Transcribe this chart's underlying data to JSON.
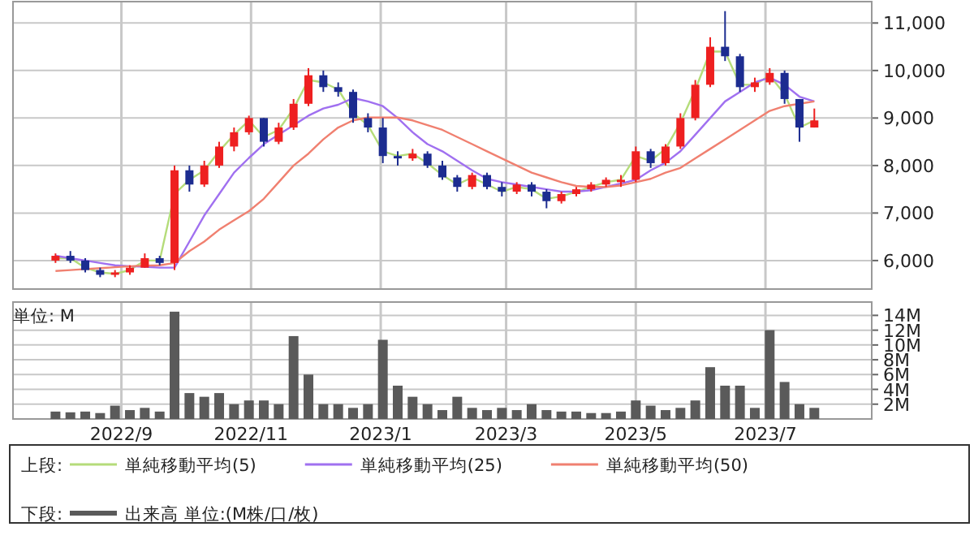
{
  "chart_data": [
    {
      "type": "candlestick",
      "legend_title": "上段:",
      "legend": "bottom",
      "grid": true,
      "tick_labels": "y",
      "marker": "none",
      "line_style": "solid",
      "xlim": [
        "2022-07-12",
        "2023-08-20"
      ],
      "xticks": [
        {
          "value": "2022-09-01",
          "label": null
        },
        {
          "value": "2022-11-01",
          "label": null
        },
        {
          "value": "2023-01-01",
          "label": null
        },
        {
          "value": "2023-03-01",
          "label": null
        },
        {
          "value": "2023-05-01",
          "label": null
        },
        {
          "value": "2023-07-01",
          "label": null
        }
      ],
      "ylim": [
        5400,
        11450
      ],
      "yticks": [
        {
          "value": 6000,
          "label": "6,000"
        },
        {
          "value": 7000,
          "label": "7,000"
        },
        {
          "value": 8000,
          "label": "8,000"
        },
        {
          "value": 9000,
          "label": "9,000"
        },
        {
          "value": 10000,
          "label": "10,000"
        },
        {
          "value": 11000,
          "label": "11,000"
        }
      ],
      "x": [
        "2022-08-01",
        "2022-08-08",
        "2022-08-15",
        "2022-08-22",
        "2022-08-29",
        "2022-09-05",
        "2022-09-12",
        "2022-09-19",
        "2022-09-26",
        "2022-10-03",
        "2022-10-10",
        "2022-10-17",
        "2022-10-24",
        "2022-10-31",
        "2022-11-07",
        "2022-11-14",
        "2022-11-21",
        "2022-11-28",
        "2022-12-05",
        "2022-12-12",
        "2022-12-19",
        "2022-12-26",
        "2023-01-02",
        "2023-01-09",
        "2023-01-16",
        "2023-01-23",
        "2023-01-30",
        "2023-02-06",
        "2023-02-13",
        "2023-02-20",
        "2023-02-27",
        "2023-03-06",
        "2023-03-13",
        "2023-03-20",
        "2023-03-27",
        "2023-04-03",
        "2023-04-10",
        "2023-04-17",
        "2023-04-24",
        "2023-05-01",
        "2023-05-08",
        "2023-05-15",
        "2023-05-22",
        "2023-05-29",
        "2023-06-05",
        "2023-06-12",
        "2023-06-19",
        "2023-06-26",
        "2023-07-03",
        "2023-07-10",
        "2023-07-17",
        "2023-07-24"
      ],
      "ohlc": [
        [
          6000,
          6150,
          5950,
          6100
        ],
        [
          6100,
          6200,
          5950,
          6000
        ],
        [
          6000,
          6050,
          5750,
          5800
        ],
        [
          5800,
          5850,
          5650,
          5700
        ],
        [
          5700,
          5800,
          5650,
          5750
        ],
        [
          5750,
          5900,
          5700,
          5850
        ],
        [
          5850,
          6150,
          5850,
          6050
        ],
        [
          6050,
          6100,
          5900,
          5950
        ],
        [
          5950,
          8000,
          5800,
          7900
        ],
        [
          7900,
          8000,
          7450,
          7600
        ],
        [
          7600,
          8100,
          7550,
          8000
        ],
        [
          8000,
          8500,
          7950,
          8400
        ],
        [
          8400,
          8800,
          8300,
          8700
        ],
        [
          8700,
          9050,
          8650,
          9000
        ],
        [
          9000,
          9000,
          8400,
          8500
        ],
        [
          8500,
          8900,
          8450,
          8800
        ],
        [
          8800,
          9400,
          8750,
          9300
        ],
        [
          9300,
          10050,
          9250,
          9900
        ],
        [
          9900,
          10000,
          9550,
          9650
        ],
        [
          9650,
          9750,
          9450,
          9550
        ],
        [
          9550,
          9600,
          8900,
          9000
        ],
        [
          9000,
          9100,
          8700,
          8800
        ],
        [
          8800,
          9000,
          8050,
          8200
        ],
        [
          8200,
          8300,
          8000,
          8150
        ],
        [
          8150,
          8350,
          8100,
          8250
        ],
        [
          8250,
          8300,
          7950,
          8000
        ],
        [
          8000,
          8100,
          7700,
          7750
        ],
        [
          7750,
          7800,
          7450,
          7550
        ],
        [
          7550,
          7850,
          7500,
          7800
        ],
        [
          7800,
          7850,
          7500,
          7550
        ],
        [
          7550,
          7650,
          7350,
          7450
        ],
        [
          7450,
          7650,
          7400,
          7600
        ],
        [
          7600,
          7650,
          7350,
          7450
        ],
        [
          7450,
          7500,
          7100,
          7250
        ],
        [
          7250,
          7450,
          7200,
          7400
        ],
        [
          7400,
          7550,
          7350,
          7500
        ],
        [
          7500,
          7650,
          7450,
          7600
        ],
        [
          7600,
          7750,
          7550,
          7700
        ],
        [
          7650,
          7800,
          7550,
          7700
        ],
        [
          7700,
          8400,
          7650,
          8300
        ],
        [
          8300,
          8350,
          7950,
          8050
        ],
        [
          8050,
          8450,
          8000,
          8400
        ],
        [
          8400,
          9100,
          8350,
          9000
        ],
        [
          9000,
          9800,
          8950,
          9700
        ],
        [
          9700,
          10700,
          9650,
          10500
        ],
        [
          10500,
          11250,
          10200,
          10300
        ],
        [
          10300,
          10350,
          9550,
          9650
        ],
        [
          9650,
          9850,
          9550,
          9750
        ],
        [
          9750,
          10050,
          9700,
          9950
        ],
        [
          9950,
          10000,
          9300,
          9400
        ],
        [
          9400,
          9400,
          8500,
          8800
        ],
        [
          8800,
          9200,
          8800,
          8950
        ]
      ],
      "series": [
        {
          "type": "line",
          "name": "単純移動平均(5)",
          "color": "#b5dc7a",
          "values": [
            6050,
            6050,
            5850,
            5750,
            5720,
            5800,
            6000,
            6000,
            7400,
            7700,
            7900,
            8300,
            8650,
            8950,
            8600,
            8750,
            9200,
            9800,
            9750,
            9600,
            9100,
            8850,
            8300,
            8200,
            8250,
            8050,
            7800,
            7600,
            7750,
            7600,
            7450,
            7550,
            7500,
            7300,
            7350,
            7450,
            7550,
            7650,
            7700,
            8200,
            8100,
            8350,
            8900,
            9600,
            10400,
            10400,
            9700,
            9700,
            9900,
            9500,
            8800,
            8950
          ]
        },
        {
          "type": "line",
          "name": "単純移動平均(25)",
          "color": "#a070f0",
          "values": [
            6100,
            6050,
            6000,
            5950,
            5900,
            5880,
            5870,
            5850,
            5850,
            6400,
            6950,
            7400,
            7850,
            8160,
            8450,
            8650,
            8850,
            9050,
            9200,
            9280,
            9420,
            9350,
            9250,
            9000,
            8700,
            8450,
            8300,
            8100,
            7900,
            7720,
            7650,
            7600,
            7550,
            7500,
            7450,
            7450,
            7480,
            7550,
            7620,
            7700,
            7900,
            8060,
            8300,
            8650,
            9000,
            9350,
            9550,
            9750,
            9850,
            9700,
            9450,
            9350
          ]
        },
        {
          "type": "line",
          "name": "単純移動平均(50)",
          "color": "#f08070",
          "values": [
            5780,
            5800,
            5820,
            5840,
            5860,
            5880,
            5890,
            5900,
            5950,
            6200,
            6400,
            6650,
            6850,
            7040,
            7300,
            7650,
            8000,
            8250,
            8550,
            8800,
            8950,
            9010,
            9010,
            9010,
            8950,
            8850,
            8750,
            8600,
            8450,
            8300,
            8150,
            8000,
            7850,
            7750,
            7650,
            7570,
            7550,
            7550,
            7580,
            7650,
            7720,
            7850,
            7950,
            8150,
            8350,
            8550,
            8750,
            8950,
            9150,
            9250,
            9300,
            9350
          ]
        }
      ]
    },
    {
      "type": "bar",
      "legend_title": "下段:",
      "legend": "bottom",
      "grid": true,
      "ylabel": "単位: M",
      "xlim": [
        "2022-07-12",
        "2023-08-20"
      ],
      "xticks": [
        {
          "value": "2022-09-01",
          "label": "2022/9"
        },
        {
          "value": "2022-11-01",
          "label": "2022/11"
        },
        {
          "value": "2023-01-01",
          "label": "2023/1"
        },
        {
          "value": "2023-03-01",
          "label": "2023/3"
        },
        {
          "value": "2023-05-01",
          "label": "2023/5"
        },
        {
          "value": "2023-07-01",
          "label": "2023/7"
        }
      ],
      "ylim": [
        0,
        15.8
      ],
      "yticks": [
        {
          "value": 2,
          "label": "2M"
        },
        {
          "value": 4,
          "label": "4M"
        },
        {
          "value": 6,
          "label": "6M"
        },
        {
          "value": 8,
          "label": "8M"
        },
        {
          "value": 10,
          "label": "10M"
        },
        {
          "value": 12,
          "label": "12M"
        },
        {
          "value": 14,
          "label": "14M"
        }
      ],
      "x": [
        "2022-08-01",
        "2022-08-08",
        "2022-08-15",
        "2022-08-22",
        "2022-08-29",
        "2022-09-05",
        "2022-09-12",
        "2022-09-19",
        "2022-09-26",
        "2022-10-03",
        "2022-10-10",
        "2022-10-17",
        "2022-10-24",
        "2022-10-31",
        "2022-11-07",
        "2022-11-14",
        "2022-11-21",
        "2022-11-28",
        "2022-12-05",
        "2022-12-12",
        "2022-12-19",
        "2022-12-26",
        "2023-01-02",
        "2023-01-09",
        "2023-01-16",
        "2023-01-23",
        "2023-01-30",
        "2023-02-06",
        "2023-02-13",
        "2023-02-20",
        "2023-02-27",
        "2023-03-06",
        "2023-03-13",
        "2023-03-20",
        "2023-03-27",
        "2023-04-03",
        "2023-04-10",
        "2023-04-17",
        "2023-04-24",
        "2023-05-01",
        "2023-05-08",
        "2023-05-15",
        "2023-05-22",
        "2023-05-29",
        "2023-06-05",
        "2023-06-12",
        "2023-06-19",
        "2023-06-26",
        "2023-07-03",
        "2023-07-10",
        "2023-07-17",
        "2023-07-24"
      ],
      "series": [
        {
          "name": "出来高 単位:(M株/口/枚)",
          "color": "#5a5a5a",
          "values": [
            1.0,
            0.9,
            1.0,
            0.8,
            1.8,
            1.2,
            1.5,
            1.0,
            14.5,
            3.5,
            3.0,
            3.5,
            2.0,
            2.5,
            2.5,
            2.0,
            11.2,
            6.0,
            2.0,
            2.0,
            1.5,
            2.0,
            10.7,
            4.5,
            3.0,
            2.0,
            1.2,
            3.0,
            1.5,
            1.2,
            1.5,
            1.2,
            2.0,
            1.2,
            1.0,
            1.0,
            0.8,
            0.8,
            1.0,
            2.5,
            1.8,
            1.2,
            1.5,
            2.5,
            7.0,
            4.5,
            4.5,
            1.5,
            12.0,
            5.0,
            2.0,
            1.5
          ]
        }
      ]
    }
  ]
}
